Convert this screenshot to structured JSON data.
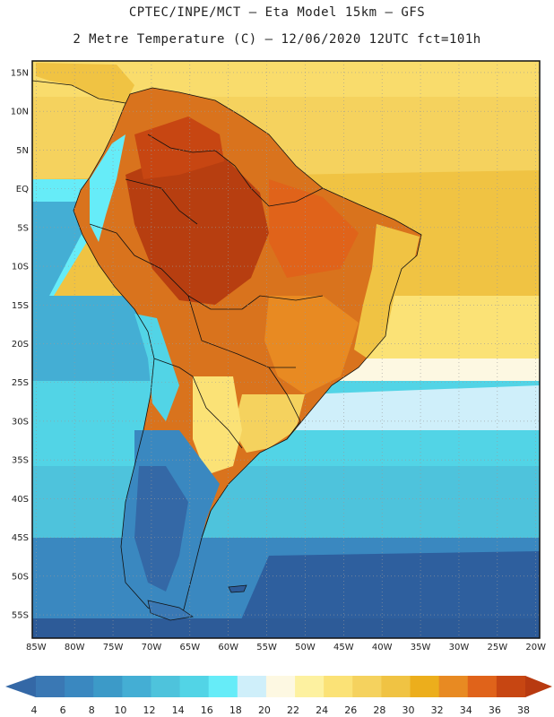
{
  "header": {
    "line1": "CPTEC/INPE/MCT –  Eta Model 15km – GFS",
    "line2": "2 Metre Temperature (C) – 12/06/2020 12UTC fct=101h"
  },
  "map": {
    "lat_labels": [
      "15N",
      "10N",
      "5N",
      "EQ",
      "5S",
      "10S",
      "15S",
      "20S",
      "25S",
      "30S",
      "35S",
      "40S",
      "45S",
      "50S",
      "55S"
    ],
    "lat_values": [
      15,
      10,
      5,
      0,
      -5,
      -10,
      -15,
      -20,
      -25,
      -30,
      -35,
      -40,
      -45,
      -50,
      -55
    ],
    "lon_labels": [
      "85W",
      "80W",
      "75W",
      "70W",
      "65W",
      "60W",
      "55W",
      "50W",
      "45W",
      "40W",
      "35W",
      "30W",
      "25W",
      "20W"
    ],
    "lon_values": [
      -85,
      -80,
      -75,
      -70,
      -65,
      -60,
      -55,
      -50,
      -45,
      -40,
      -35,
      -30,
      -25,
      -20
    ],
    "lon_range": [
      -85.5,
      -19.5
    ],
    "lat_range": [
      -58,
      16.5
    ]
  },
  "colorbar": {
    "labels": [
      "4",
      "6",
      "8",
      "10",
      "12",
      "14",
      "16",
      "18",
      "20",
      "22",
      "24",
      "26",
      "28",
      "30",
      "32",
      "34",
      "36",
      "38"
    ],
    "colors": [
      "#3a78b4",
      "#3a88c0",
      "#3c9ac8",
      "#44aed4",
      "#4ec3dc",
      "#52d4e6",
      "#66ecf8",
      "#cfeffa",
      "#fdf8e2",
      "#fdf1a0",
      "#fbe276",
      "#f5d25e",
      "#f0c343",
      "#ecae1c",
      "#e88a22",
      "#e0631a",
      "#c74612"
    ],
    "below_color": "#3468a6",
    "above_color": "#b83a10"
  }
}
